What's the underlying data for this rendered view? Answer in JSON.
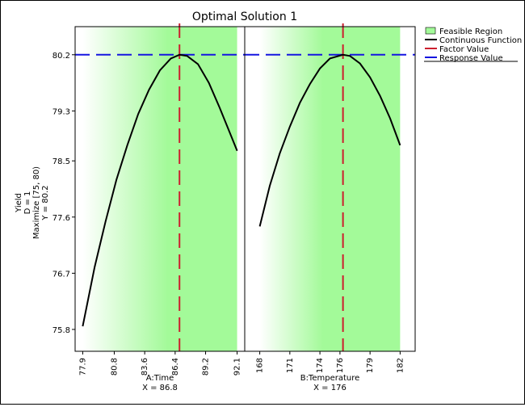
{
  "chart_data": {
    "type": "line",
    "title": "Optimal Solution 1",
    "y_labels": [
      "Yield",
      "D = 1",
      "Maximize [75, 80)",
      "Y = 80.2"
    ],
    "ylim": [
      75.45,
      80.65
    ],
    "y_ticks": [
      "75.8",
      "76.7",
      "77.6",
      "78.5",
      "79.3",
      "80.2"
    ],
    "response_value": 80.2,
    "grid": false,
    "legend_position": "right",
    "legend": [
      {
        "label": "Feasible Region",
        "kind": "box",
        "color": "#a3fa99"
      },
      {
        "label": "Continuous Function",
        "kind": "line",
        "color": "#000000"
      },
      {
        "label": "Factor Value",
        "kind": "line",
        "color": "#cc1f2e"
      },
      {
        "label": "Response Value",
        "kind": "line",
        "color": "#1515e0"
      }
    ],
    "colors": {
      "feasible": "#a3fa99",
      "curve": "#000000",
      "factor": "#cc1f2e",
      "response": "#1515e0"
    },
    "panels": [
      {
        "xlabel": "A:Time",
        "setting": "X = 86.8",
        "xlim": [
          77.2,
          92.8
        ],
        "x_ticks": [
          "77.9",
          "80.8",
          "83.6",
          "86.4",
          "89.2",
          "92.1"
        ],
        "feasible_range": [
          77.9,
          92.1
        ],
        "factor_value": 86.8,
        "series": {
          "name": "",
          "x": [
            77.9,
            79.0,
            80.0,
            81.0,
            82.0,
            83.0,
            84.0,
            85.0,
            86.0,
            86.8,
            87.5,
            88.5,
            89.5,
            90.5,
            91.5,
            92.1
          ],
          "y": [
            75.85,
            76.8,
            77.53,
            78.2,
            78.75,
            79.25,
            79.64,
            79.95,
            80.14,
            80.2,
            80.18,
            80.05,
            79.75,
            79.35,
            78.92,
            78.66
          ]
        }
      },
      {
        "xlabel": "B:Temperature",
        "setting": "X = 176",
        "xlim": [
          166.5,
          183.5
        ],
        "x_ticks": [
          "168",
          "171",
          "174",
          "176",
          "179",
          "182"
        ],
        "feasible_range": [
          168.0,
          182.0
        ],
        "factor_value": 176.3,
        "series": {
          "name": "",
          "x": [
            168.0,
            169.0,
            170.0,
            171.0,
            172.0,
            173.0,
            174.0,
            175.0,
            176.3,
            177.0,
            178.0,
            179.0,
            180.0,
            181.0,
            182.0
          ],
          "y": [
            77.45,
            78.1,
            78.62,
            79.05,
            79.43,
            79.73,
            79.98,
            80.14,
            80.2,
            80.18,
            80.06,
            79.84,
            79.54,
            79.18,
            78.75
          ]
        }
      }
    ]
  }
}
